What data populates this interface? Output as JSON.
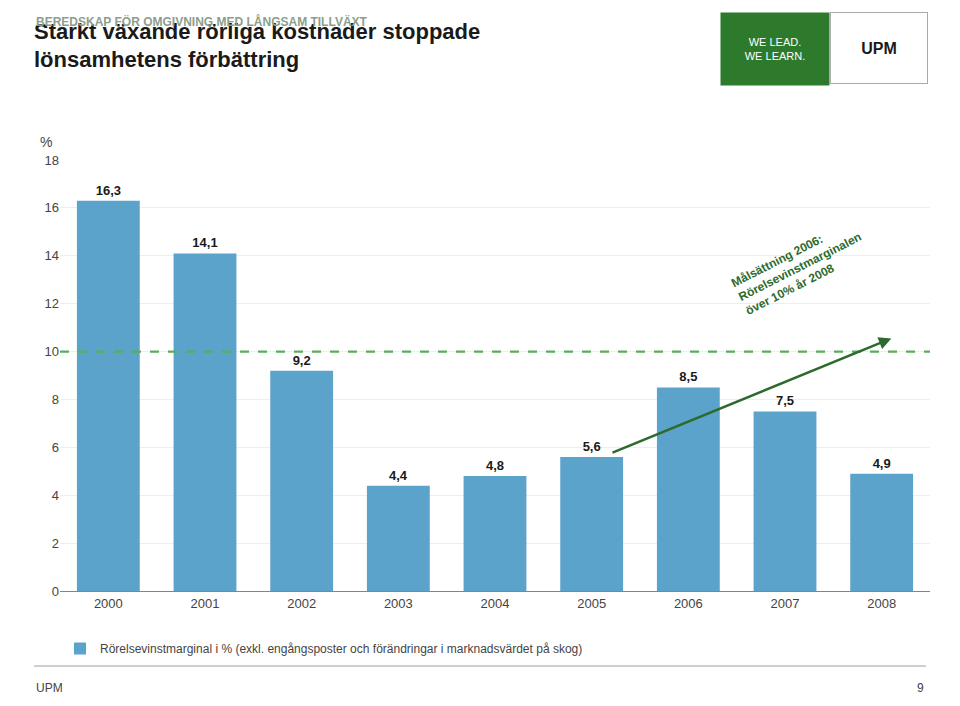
{
  "chart_data": {
    "type": "bar",
    "title": "Starkt växande rörliga kostnader stoppade\nlönsamhetens förbättring",
    "subtitle": "BEREDSKAP FÖR OMGIVNING MED LÅNGSAM TILLVÄXT",
    "ylabel": "%",
    "categories": [
      "2000",
      "2001",
      "2002",
      "2003",
      "2004",
      "2005",
      "2006",
      "2007",
      "2008"
    ],
    "series": [
      {
        "name": "Rörelsevinstmarginal i % (exkl. engångsposter och förändringar i marknadsvärdet på skog)",
        "color": "#5BA3CB",
        "values": [
          16.3,
          14.1,
          9.2,
          4.4,
          4.8,
          5.6,
          8.5,
          7.5,
          4.9
        ],
        "value_labels": [
          "16,3",
          "14,1",
          "9,2",
          "4,4",
          "4,8",
          "5,6",
          "8,5",
          "7,5",
          "4,9"
        ]
      }
    ],
    "data_labels": true,
    "ylim": [
      0,
      18
    ],
    "yticks": [
      0,
      2,
      4,
      6,
      8,
      10,
      12,
      14,
      16,
      18
    ],
    "grid": true,
    "legend": "bottom",
    "reference_line": {
      "value": 10,
      "color": "#5BAD5B",
      "line_style": "dashed"
    },
    "annotations": [
      {
        "text": "Målsättning 2006:\nRörelsevinstmarginalen\növer 10% år 2008",
        "color": "#2D6A2D"
      }
    ],
    "logo": {
      "texts": [
        "WE LEAD.",
        "WE LEARN.",
        "UPM"
      ],
      "color": "#2D7A2D"
    },
    "footer": [
      "UPM",
      "9"
    ]
  }
}
